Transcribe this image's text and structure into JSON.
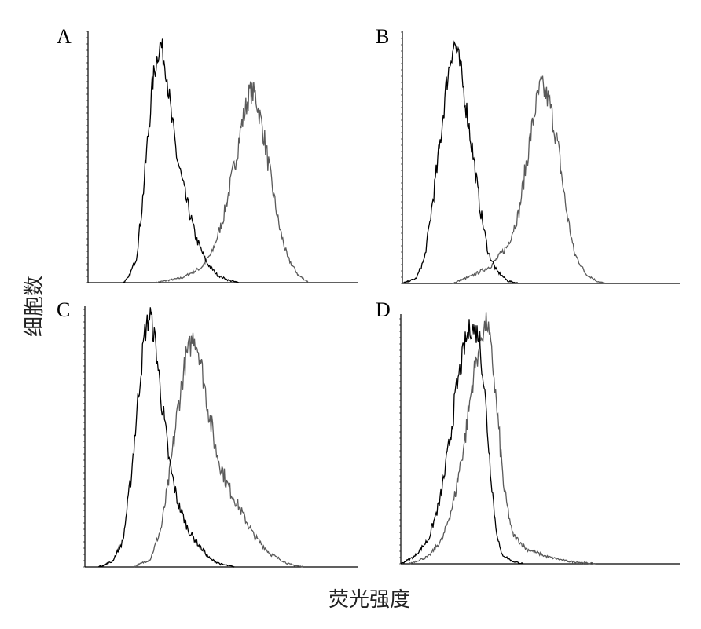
{
  "chart_data": {
    "type": "line",
    "xlabel": "荧光强度",
    "ylabel": "细胞数",
    "grid": false,
    "legend": "none",
    "series_colors": {
      "black": "#000000",
      "gray": "#5a5a5a"
    },
    "panels": [
      {
        "label": "A",
        "xlim": [
          0,
          100
        ],
        "ylim": [
          0,
          100
        ],
        "series": [
          {
            "color": "#000000",
            "points": [
              [
                13,
                0
              ],
              [
                15,
                2
              ],
              [
                18,
                10
              ],
              [
                20,
                30
              ],
              [
                22,
                55
              ],
              [
                24,
                80
              ],
              [
                26,
                92
              ],
              [
                27,
                95
              ],
              [
                29,
                85
              ],
              [
                31,
                65
              ],
              [
                33,
                50
              ],
              [
                36,
                35
              ],
              [
                40,
                18
              ],
              [
                44,
                8
              ],
              [
                48,
                3
              ],
              [
                52,
                1
              ],
              [
                56,
                0
              ]
            ]
          },
          {
            "color": "#5a5a5a",
            "points": [
              [
                25,
                0
              ],
              [
                35,
                2
              ],
              [
                42,
                6
              ],
              [
                46,
                12
              ],
              [
                50,
                25
              ],
              [
                54,
                45
              ],
              [
                57,
                63
              ],
              [
                60,
                76
              ],
              [
                62,
                75
              ],
              [
                65,
                60
              ],
              [
                68,
                40
              ],
              [
                71,
                22
              ],
              [
                74,
                10
              ],
              [
                78,
                3
              ],
              [
                82,
                0
              ]
            ]
          }
        ]
      },
      {
        "label": "B",
        "xlim": [
          0,
          100
        ],
        "ylim": [
          0,
          100
        ],
        "series": [
          {
            "color": "#000000",
            "points": [
              [
                0,
                0
              ],
              [
                5,
                2
              ],
              [
                8,
                10
              ],
              [
                10,
                25
              ],
              [
                13,
                50
              ],
              [
                16,
                80
              ],
              [
                18,
                93
              ],
              [
                19,
                95
              ],
              [
                21,
                85
              ],
              [
                23,
                70
              ],
              [
                25,
                55
              ],
              [
                28,
                30
              ],
              [
                31,
                12
              ],
              [
                34,
                5
              ],
              [
                38,
                1
              ],
              [
                42,
                0
              ]
            ]
          },
          {
            "color": "#5a5a5a",
            "points": [
              [
                18,
                0
              ],
              [
                25,
                3
              ],
              [
                32,
                7
              ],
              [
                38,
                15
              ],
              [
                42,
                28
              ],
              [
                45,
                50
              ],
              [
                48,
                70
              ],
              [
                50,
                79
              ],
              [
                53,
                72
              ],
              [
                56,
                55
              ],
              [
                59,
                30
              ],
              [
                62,
                12
              ],
              [
                66,
                4
              ],
              [
                70,
                1
              ],
              [
                73,
                0
              ]
            ]
          }
        ]
      },
      {
        "label": "C",
        "xlim": [
          0,
          100
        ],
        "ylim": [
          0,
          100
        ],
        "series": [
          {
            "color": "#000000",
            "points": [
              [
                5,
                0
              ],
              [
                10,
                2
              ],
              [
                14,
                10
              ],
              [
                17,
                35
              ],
              [
                20,
                70
              ],
              [
                22,
                90
              ],
              [
                24,
                97
              ],
              [
                26,
                85
              ],
              [
                28,
                65
              ],
              [
                31,
                40
              ],
              [
                34,
                25
              ],
              [
                38,
                14
              ],
              [
                42,
                8
              ],
              [
                46,
                3
              ],
              [
                50,
                1
              ],
              [
                55,
                0
              ]
            ]
          },
          {
            "color": "#5a5a5a",
            "points": [
              [
                18,
                0
              ],
              [
                24,
                3
              ],
              [
                28,
                15
              ],
              [
                31,
                35
              ],
              [
                34,
                60
              ],
              [
                37,
                80
              ],
              [
                40,
                89
              ],
              [
                42,
                82
              ],
              [
                45,
                62
              ],
              [
                48,
                45
              ],
              [
                52,
                32
              ],
              [
                57,
                22
              ],
              [
                62,
                12
              ],
              [
                68,
                5
              ],
              [
                75,
                1
              ],
              [
                80,
                0
              ]
            ]
          }
        ]
      },
      {
        "label": "D",
        "xlim": [
          0,
          100
        ],
        "ylim": [
          0,
          100
        ],
        "series": [
          {
            "color": "#000000",
            "points": [
              [
                0,
                0
              ],
              [
                5,
                3
              ],
              [
                10,
                10
              ],
              [
                14,
                25
              ],
              [
                17,
                45
              ],
              [
                20,
                70
              ],
              [
                23,
                88
              ],
              [
                25,
                95
              ],
              [
                28,
                92
              ],
              [
                30,
                70
              ],
              [
                32,
                40
              ],
              [
                34,
                15
              ],
              [
                36,
                4
              ],
              [
                40,
                1
              ],
              [
                44,
                0
              ]
            ]
          },
          {
            "color": "#5a5a5a",
            "points": [
              [
                3,
                0
              ],
              [
                10,
                3
              ],
              [
                15,
                10
              ],
              [
                19,
                25
              ],
              [
                23,
                50
              ],
              [
                26,
                75
              ],
              [
                29,
                92
              ],
              [
                31,
                97
              ],
              [
                33,
                80
              ],
              [
                35,
                55
              ],
              [
                37,
                30
              ],
              [
                40,
                12
              ],
              [
                45,
                6
              ],
              [
                52,
                3
              ],
              [
                60,
                1
              ],
              [
                70,
                0
              ]
            ]
          }
        ]
      }
    ]
  }
}
